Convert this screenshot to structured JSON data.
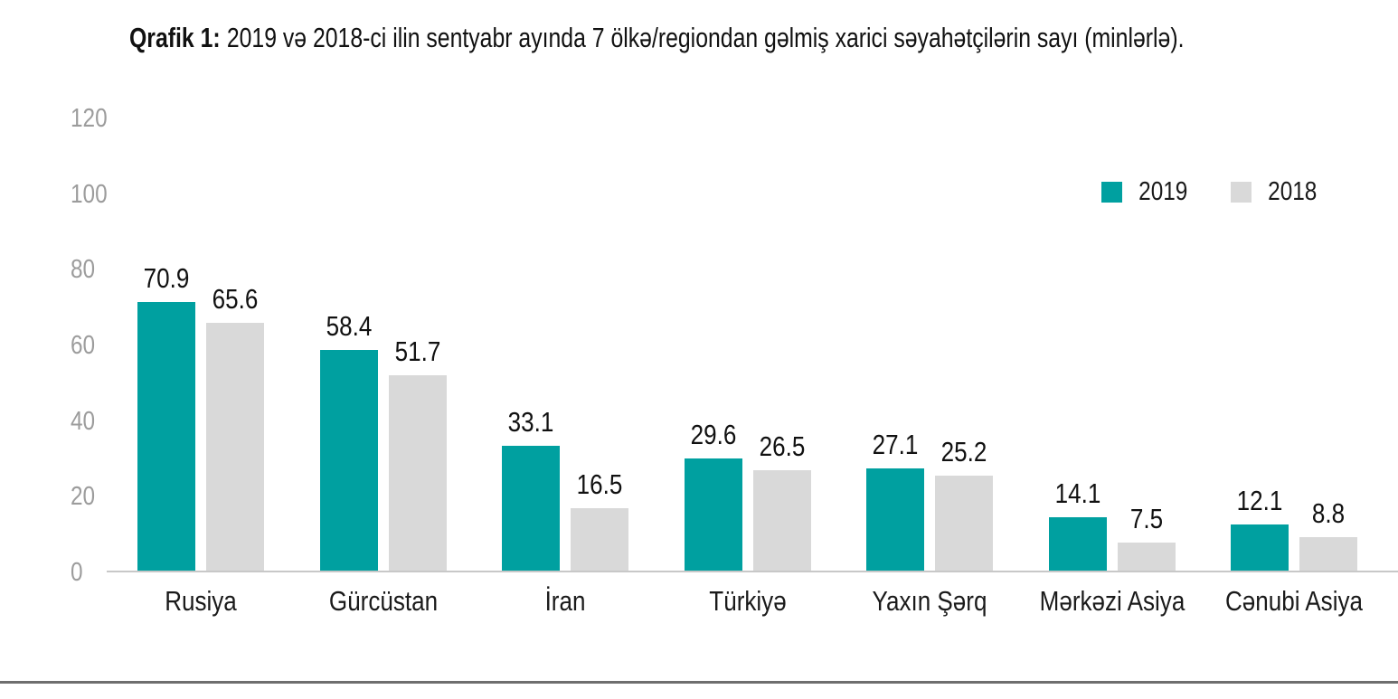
{
  "title": {
    "prefix": "Qrafik 1:",
    "rest": "2019 və 2018-ci ilin sentyabr ayında 7 ölkə/regiondan gəlmiş xarici səyahətçilərin sayı (minlərlə)."
  },
  "colors": {
    "series_2019": "#00A0A0",
    "series_2018": "#D9D9D9",
    "value_label": "#111111",
    "tick_label": "#9C9C9C",
    "axis_line": "#C8C8C8",
    "bottom_rule": "#6E6E6E"
  },
  "chart_data": {
    "type": "bar",
    "title": "Qrafik 1: 2019 və 2018-ci ilin sentyabr ayında 7 ölkə/regiondan gəlmiş xarici səyahətçilərin sayı (minlərlə).",
    "categories": [
      "Rusiya",
      "Gürcüstan",
      "İran",
      "Türkiyə",
      "Yaxın Şərq",
      "Mərkəzi Asiya",
      "Cənubi Asiya"
    ],
    "series": [
      {
        "name": "2019",
        "color": "#00A0A0",
        "values": [
          70.9,
          58.4,
          33.1,
          29.6,
          27.1,
          14.1,
          12.1
        ]
      },
      {
        "name": "2018",
        "color": "#D9D9D9",
        "values": [
          65.6,
          51.7,
          16.5,
          26.5,
          25.2,
          7.5,
          8.8
        ]
      }
    ],
    "xlabel": "",
    "ylabel": "",
    "ylim": [
      0,
      120
    ],
    "yticks": [
      0,
      20,
      40,
      60,
      80,
      100,
      120
    ],
    "grid": false,
    "legend_position": "top-right",
    "data_labels": true
  }
}
